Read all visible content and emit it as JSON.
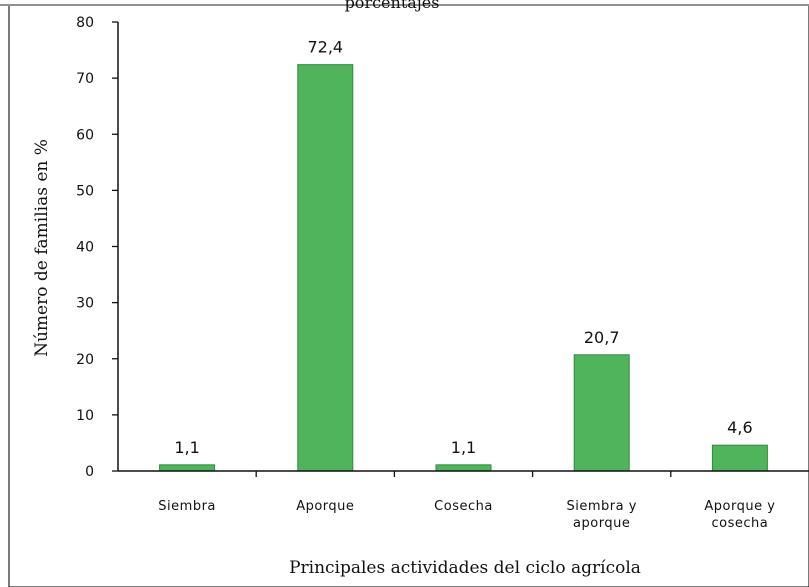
{
  "chart_data": {
    "type": "bar",
    "title": "porcentajes",
    "xlabel": "Principales actividades del ciclo agrícola",
    "ylabel": "Número de familias en %",
    "categories": [
      [
        "Siembra"
      ],
      [
        "Aporque"
      ],
      [
        "Cosecha"
      ],
      [
        "Siembra y",
        "aporque"
      ],
      [
        "Aporque y",
        "cosecha"
      ]
    ],
    "values": [
      1.1,
      72.4,
      1.1,
      20.7,
      4.6
    ],
    "data_labels": [
      "1,1",
      "72,4",
      "1,1",
      "20,7",
      "4,6"
    ],
    "yticks": [
      0,
      10,
      20,
      30,
      40,
      50,
      60,
      70,
      80
    ],
    "ylim": [
      0,
      80
    ],
    "grid": false,
    "legend": "none",
    "bar_color": "#4fb45c",
    "bar_edge_color": "#2f8a3c"
  }
}
